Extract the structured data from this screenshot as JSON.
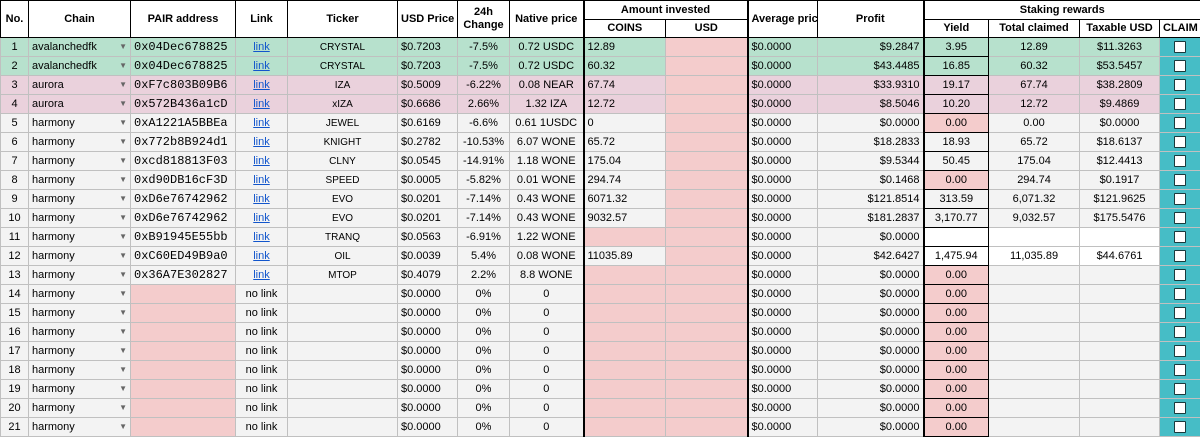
{
  "headers": {
    "no": "No.",
    "chain": "Chain",
    "pair": "PAIR address",
    "link": "Link",
    "ticker": "Ticker",
    "usd_price": "USD Price",
    "change": "24h Change",
    "native": "Native price",
    "amount_invested": "Amount invested",
    "coins": "COINS",
    "usd": "USD",
    "avg_price": "Average price",
    "profit": "Profit",
    "staking": "Staking rewards",
    "yield": "Yield",
    "total_claimed": "Total claimed",
    "taxable": "Taxable USD",
    "claim": "CLAIM"
  },
  "rows": [
    {
      "no": "1",
      "chain": "avalanchedfk",
      "pair": "0x04Dec678825",
      "link": "link",
      "ticker": "CRYSTAL",
      "price": "$0.7203",
      "change": "-7.5%",
      "native": "0.72 USDC",
      "coins": "12.89",
      "usd": "",
      "avg": "$0.0000",
      "profit": "$9.2847",
      "yield": "3.95",
      "claimed": "12.89",
      "taxable": "$11.3263",
      "style": "green"
    },
    {
      "no": "2",
      "chain": "avalanchedfk",
      "pair": "0x04Dec678825",
      "link": "link",
      "ticker": "CRYSTAL",
      "price": "$0.7203",
      "change": "-7.5%",
      "native": "0.72 USDC",
      "coins": "60.32",
      "usd": "",
      "avg": "$0.0000",
      "profit": "$43.4485",
      "yield": "16.85",
      "claimed": "60.32",
      "taxable": "$53.5457",
      "style": "green"
    },
    {
      "no": "3",
      "chain": "aurora",
      "pair": "0xF7c803B09B6",
      "link": "link",
      "ticker": "IZA",
      "price": "$0.5009",
      "change": "-6.22%",
      "native": "0.08 NEAR",
      "coins": "67.74",
      "usd": "",
      "avg": "$0.0000",
      "profit": "$33.9310",
      "yield": "19.17",
      "claimed": "67.74",
      "taxable": "$38.2809",
      "style": "pink"
    },
    {
      "no": "4",
      "chain": "aurora",
      "pair": "0x572B436a1cD",
      "link": "link",
      "ticker": "xIZA",
      "price": "$0.6686",
      "change": "2.66%",
      "native": "1.32 IZA",
      "coins": "12.72",
      "usd": "",
      "avg": "$0.0000",
      "profit": "$8.5046",
      "yield": "10.20",
      "claimed": "12.72",
      "taxable": "$9.4869",
      "style": "pink"
    },
    {
      "no": "5",
      "chain": "harmony",
      "pair": "0xA1221A5BBEa",
      "link": "link",
      "ticker": "JEWEL",
      "price": "$0.6169",
      "change": "-6.6%",
      "native": "0.61 1USDC",
      "coins": "0",
      "usd": "",
      "avg": "$0.0000",
      "profit": "$0.0000",
      "yield": "0.00",
      "claimed": "0.00",
      "taxable": "$0.0000",
      "style": "grey",
      "yieldSalmon": true
    },
    {
      "no": "6",
      "chain": "harmony",
      "pair": "0x772b8B924d1",
      "link": "link",
      "ticker": "KNIGHT",
      "price": "$0.2782",
      "change": "-10.53%",
      "native": "6.07 WONE",
      "coins": "65.72",
      "usd": "",
      "avg": "$0.0000",
      "profit": "$18.2833",
      "yield": "18.93",
      "claimed": "65.72",
      "taxable": "$18.6137",
      "style": "grey"
    },
    {
      "no": "7",
      "chain": "harmony",
      "pair": "0xcd818813F03",
      "link": "link",
      "ticker": "CLNY",
      "price": "$0.0545",
      "change": "-14.91%",
      "native": "1.18 WONE",
      "coins": "175.04",
      "usd": "",
      "avg": "$0.0000",
      "profit": "$9.5344",
      "yield": "50.45",
      "claimed": "175.04",
      "taxable": "$12.4413",
      "style": "grey"
    },
    {
      "no": "8",
      "chain": "harmony",
      "pair": "0xd90DB16cF3D",
      "link": "link",
      "ticker": "SPEED",
      "price": "$0.0005",
      "change": "-5.82%",
      "native": "0.01 WONE",
      "coins": "294.74",
      "usd": "",
      "avg": "$0.0000",
      "profit": "$0.1468",
      "yield": "0.00",
      "claimed": "294.74",
      "taxable": "$0.1917",
      "style": "grey",
      "yieldSalmon": true
    },
    {
      "no": "9",
      "chain": "harmony",
      "pair": "0xD6e76742962",
      "link": "link",
      "ticker": "EVO",
      "price": "$0.0201",
      "change": "-7.14%",
      "native": "0.43 WONE",
      "coins": "6071.32",
      "usd": "",
      "avg": "$0.0000",
      "profit": "$121.8514",
      "yield": "313.59",
      "claimed": "6,071.32",
      "taxable": "$121.9625",
      "style": "grey"
    },
    {
      "no": "10",
      "chain": "harmony",
      "pair": "0xD6e76742962",
      "link": "link",
      "ticker": "EVO",
      "price": "$0.0201",
      "change": "-7.14%",
      "native": "0.43 WONE",
      "coins": "9032.57",
      "usd": "",
      "avg": "$0.0000",
      "profit": "$181.2837",
      "yield": "3,170.77",
      "claimed": "9,032.57",
      "taxable": "$175.5476",
      "style": "grey"
    },
    {
      "no": "11",
      "chain": "harmony",
      "pair": "0xB91945E55bb",
      "link": "link",
      "ticker": "TRANQ",
      "price": "$0.0563",
      "change": "-6.91%",
      "native": "1.22 WONE",
      "coins": "",
      "usd": "",
      "avg": "$0.0000",
      "profit": "$0.0000",
      "yield": "",
      "claimed": "",
      "taxable": "",
      "style": "grey",
      "coinsSalmon": true,
      "stakingWhite": true
    },
    {
      "no": "12",
      "chain": "harmony",
      "pair": "0xC60ED49B9a0",
      "link": "link",
      "ticker": "OIL",
      "price": "$0.0039",
      "change": "5.4%",
      "native": "0.08 WONE",
      "coins": "11035.89",
      "usd": "",
      "avg": "$0.0000",
      "profit": "$42.6427",
      "yield": "1,475.94",
      "claimed": "11,035.89",
      "taxable": "$44.6761",
      "style": "grey",
      "stakingWhite": true
    },
    {
      "no": "13",
      "chain": "harmony",
      "pair": "0x36A7E302827",
      "link": "link",
      "ticker": "MTOP",
      "price": "$0.4079",
      "change": "2.2%",
      "native": "8.8 WONE",
      "coins": "",
      "usd": "",
      "avg": "$0.0000",
      "profit": "$0.0000",
      "yield": "0.00",
      "claimed": "",
      "taxable": "",
      "style": "grey",
      "coinsSalmon": true,
      "yieldSalmon": true
    },
    {
      "no": "14",
      "chain": "harmony",
      "pair": "",
      "link": "no link",
      "ticker": "",
      "price": "$0.0000",
      "change": "0%",
      "native": "0",
      "coins": "",
      "usd": "",
      "avg": "$0.0000",
      "profit": "$0.0000",
      "yield": "0.00",
      "claimed": "",
      "taxable": "",
      "style": "grey",
      "pairSalmon": true,
      "coinsSalmon": true,
      "yieldSalmon": true
    },
    {
      "no": "15",
      "chain": "harmony",
      "pair": "",
      "link": "no link",
      "ticker": "",
      "price": "$0.0000",
      "change": "0%",
      "native": "0",
      "coins": "",
      "usd": "",
      "avg": "$0.0000",
      "profit": "$0.0000",
      "yield": "0.00",
      "claimed": "",
      "taxable": "",
      "style": "grey",
      "pairSalmon": true,
      "coinsSalmon": true,
      "yieldSalmon": true
    },
    {
      "no": "16",
      "chain": "harmony",
      "pair": "",
      "link": "no link",
      "ticker": "",
      "price": "$0.0000",
      "change": "0%",
      "native": "0",
      "coins": "",
      "usd": "",
      "avg": "$0.0000",
      "profit": "$0.0000",
      "yield": "0.00",
      "claimed": "",
      "taxable": "",
      "style": "grey",
      "pairSalmon": true,
      "coinsSalmon": true,
      "yieldSalmon": true
    },
    {
      "no": "17",
      "chain": "harmony",
      "pair": "",
      "link": "no link",
      "ticker": "",
      "price": "$0.0000",
      "change": "0%",
      "native": "0",
      "coins": "",
      "usd": "",
      "avg": "$0.0000",
      "profit": "$0.0000",
      "yield": "0.00",
      "claimed": "",
      "taxable": "",
      "style": "grey",
      "pairSalmon": true,
      "coinsSalmon": true,
      "yieldSalmon": true
    },
    {
      "no": "18",
      "chain": "harmony",
      "pair": "",
      "link": "no link",
      "ticker": "",
      "price": "$0.0000",
      "change": "0%",
      "native": "0",
      "coins": "",
      "usd": "",
      "avg": "$0.0000",
      "profit": "$0.0000",
      "yield": "0.00",
      "claimed": "",
      "taxable": "",
      "style": "grey",
      "pairSalmon": true,
      "coinsSalmon": true,
      "yieldSalmon": true
    },
    {
      "no": "19",
      "chain": "harmony",
      "pair": "",
      "link": "no link",
      "ticker": "",
      "price": "$0.0000",
      "change": "0%",
      "native": "0",
      "coins": "",
      "usd": "",
      "avg": "$0.0000",
      "profit": "$0.0000",
      "yield": "0.00",
      "claimed": "",
      "taxable": "",
      "style": "grey",
      "pairSalmon": true,
      "coinsSalmon": true,
      "yieldSalmon": true
    },
    {
      "no": "20",
      "chain": "harmony",
      "pair": "",
      "link": "no link",
      "ticker": "",
      "price": "$0.0000",
      "change": "0%",
      "native": "0",
      "coins": "",
      "usd": "",
      "avg": "$0.0000",
      "profit": "$0.0000",
      "yield": "0.00",
      "claimed": "",
      "taxable": "",
      "style": "grey",
      "pairSalmon": true,
      "coinsSalmon": true,
      "yieldSalmon": true
    },
    {
      "no": "21",
      "chain": "harmony",
      "pair": "",
      "link": "no link",
      "ticker": "",
      "price": "$0.0000",
      "change": "0%",
      "native": "0",
      "coins": "",
      "usd": "",
      "avg": "$0.0000",
      "profit": "$0.0000",
      "yield": "0.00",
      "claimed": "",
      "taxable": "",
      "style": "grey",
      "pairSalmon": true,
      "coinsSalmon": true,
      "yieldSalmon": true
    }
  ],
  "colors": {
    "green_row": "#b7e1cd",
    "pink_row": "#ead1dc",
    "grey_row": "#f3f3f3",
    "salmon": "#f4cccc",
    "claim_teal": "#46bdc6",
    "link_blue": "#1155cc"
  },
  "icons": {
    "chain_dropdown": "triangle-down-icon",
    "claim_checkbox": "checkbox-icon"
  }
}
